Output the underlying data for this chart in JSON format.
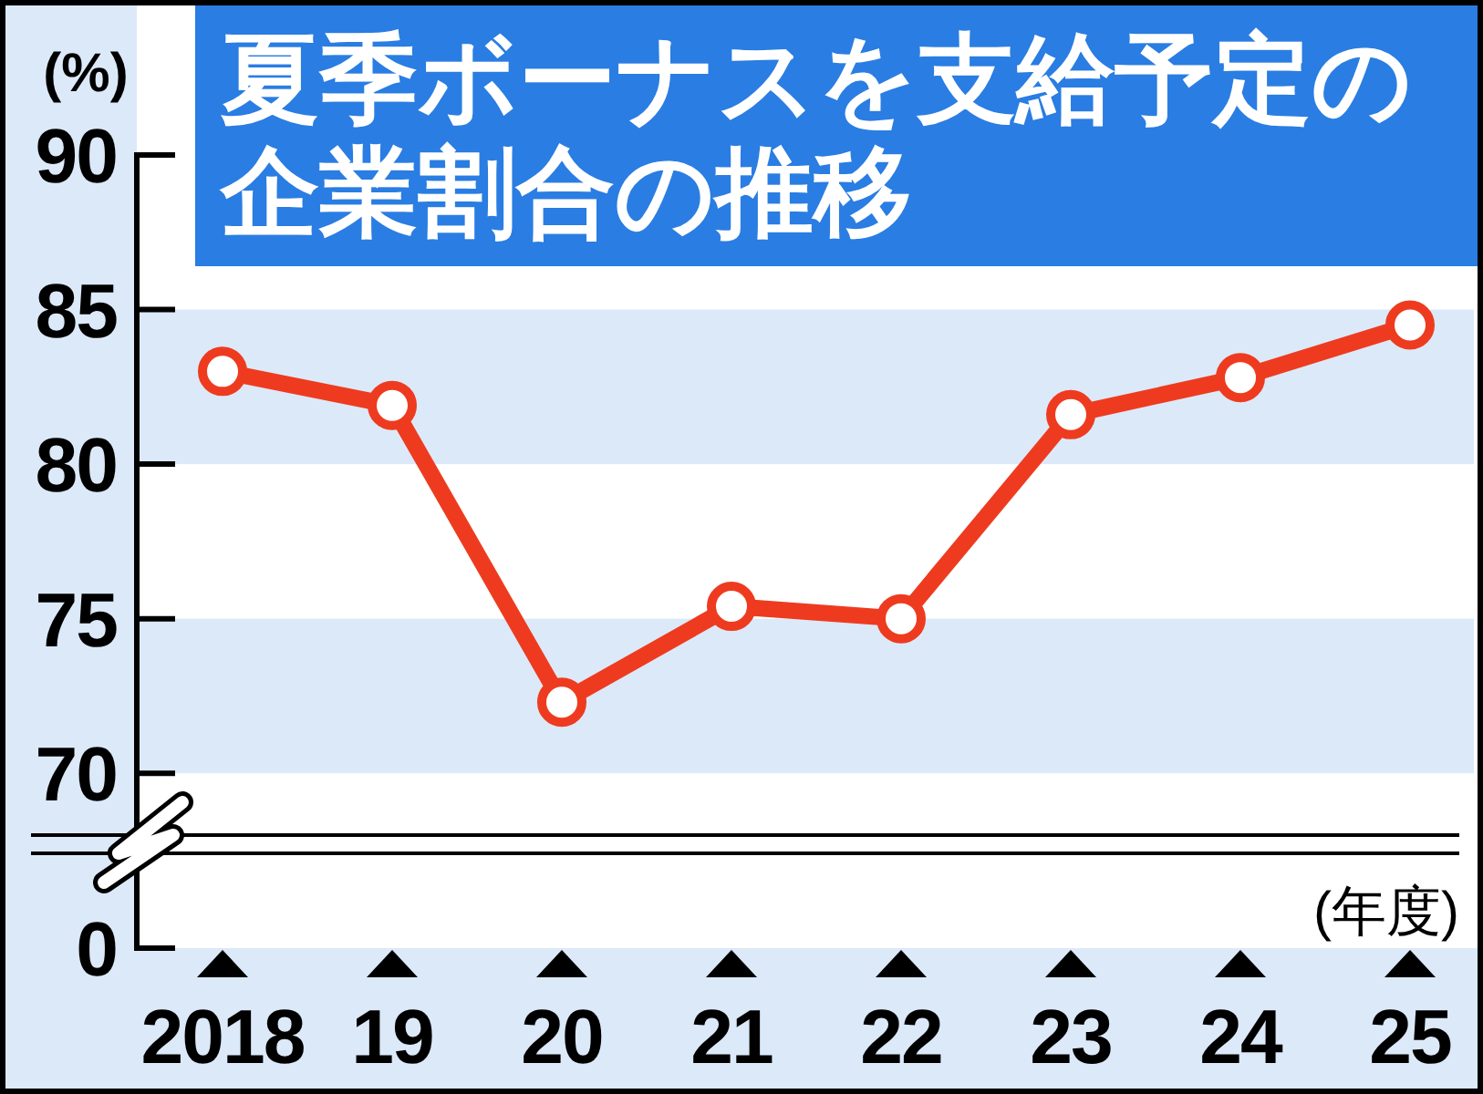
{
  "chart_data": {
    "type": "line",
    "title": "夏季ボーナスを支給予定の企業割合の推移",
    "xlabel": "(年度)",
    "ylabel": "(%)",
    "categories": [
      "2018",
      "19",
      "20",
      "21",
      "22",
      "23",
      "24",
      "25"
    ],
    "series": [
      {
        "color": "#ee3b1f",
        "values": [
          83.0,
          81.9,
          72.3,
          75.4,
          75.0,
          81.6,
          82.8,
          84.5
        ]
      }
    ],
    "ylim": [
      68,
      90
    ],
    "yticks": [
      70,
      75,
      80,
      85,
      90
    ],
    "marker": "circle",
    "bands": [
      {
        "axis": "y",
        "from": 80,
        "to": 85,
        "color": "#dce9f8"
      },
      {
        "axis": "y",
        "from": 70,
        "to": 75,
        "color": "#dce9f8"
      }
    ],
    "annotations": [
      "0"
    ]
  }
}
